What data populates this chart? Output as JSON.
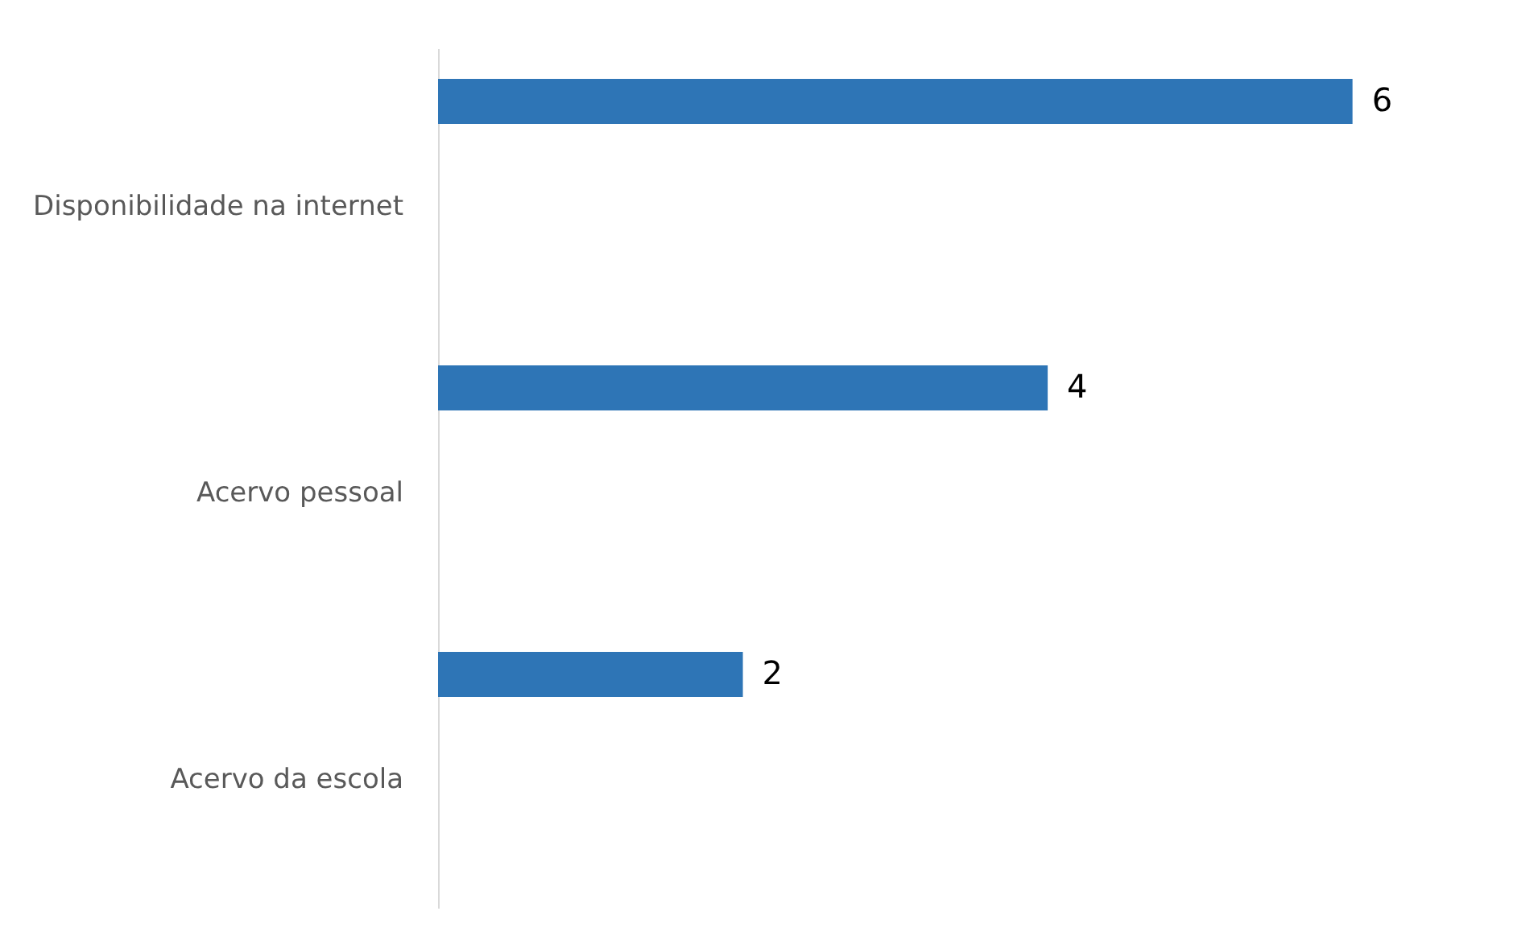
{
  "chart_data": {
    "type": "bar",
    "orientation": "horizontal",
    "categories": [
      "Disponibilidade na internet",
      "Acervo pessoal",
      "Acervo da escola"
    ],
    "values": [
      6,
      4,
      2
    ],
    "color": "#2e75b6",
    "data_labels": true,
    "grid": false
  }
}
